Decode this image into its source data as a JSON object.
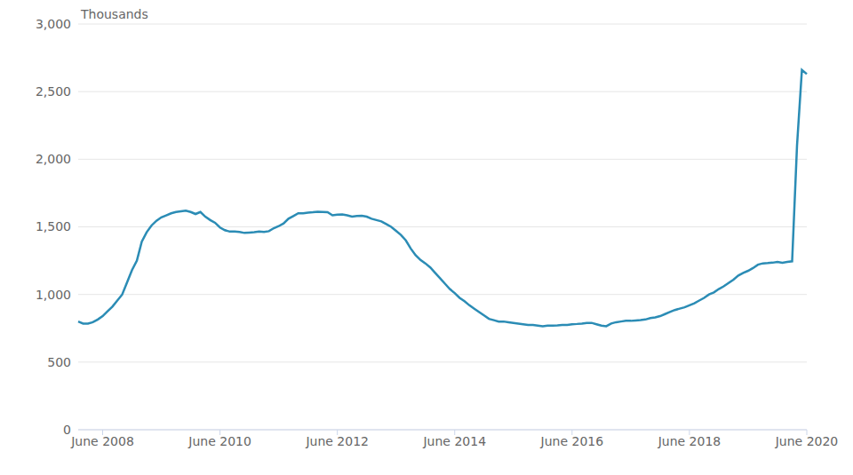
{
  "chart_data": {
    "type": "line",
    "y_label": "Thousands",
    "color": "#2b8cb5",
    "grid": true,
    "categories": [
      null,
      null,
      null,
      null,
      null,
      "June 2008",
      null,
      null,
      null,
      null,
      null,
      null,
      null,
      null,
      null,
      null,
      null,
      null,
      null,
      null,
      null,
      null,
      null,
      null,
      null,
      null,
      null,
      null,
      null,
      "June 2010",
      null,
      null,
      null,
      null,
      null,
      null,
      null,
      null,
      null,
      null,
      null,
      null,
      null,
      null,
      null,
      null,
      null,
      null,
      null,
      null,
      null,
      null,
      null,
      "June 2012",
      null,
      null,
      null,
      null,
      null,
      null,
      null,
      null,
      null,
      null,
      null,
      null,
      null,
      null,
      null,
      null,
      null,
      null,
      null,
      null,
      null,
      null,
      null,
      "June 2014",
      null,
      null,
      null,
      null,
      null,
      null,
      null,
      null,
      null,
      null,
      null,
      null,
      null,
      null,
      null,
      null,
      null,
      null,
      null,
      null,
      null,
      null,
      null,
      "June 2016",
      null,
      null,
      null,
      null,
      null,
      null,
      null,
      null,
      null,
      null,
      null,
      null,
      null,
      null,
      null,
      null,
      null,
      null,
      null,
      null,
      null,
      null,
      null,
      "June 2018",
      null,
      null,
      null,
      null,
      null,
      null,
      null,
      null,
      null,
      null,
      null,
      null,
      null,
      null,
      null,
      null,
      null,
      null,
      null,
      null,
      null,
      null,
      null,
      "June 2020"
    ],
    "values": [
      800,
      785,
      785,
      795,
      815,
      840,
      875,
      910,
      955,
      1000,
      1090,
      1180,
      1250,
      1390,
      1460,
      1510,
      1545,
      1570,
      1585,
      1600,
      1610,
      1615,
      1620,
      1610,
      1595,
      1610,
      1575,
      1550,
      1530,
      1495,
      1475,
      1465,
      1465,
      1462,
      1455,
      1458,
      1460,
      1465,
      1462,
      1468,
      1490,
      1505,
      1525,
      1560,
      1580,
      1600,
      1600,
      1605,
      1608,
      1612,
      1610,
      1608,
      1585,
      1590,
      1592,
      1585,
      1575,
      1580,
      1582,
      1575,
      1560,
      1550,
      1540,
      1520,
      1500,
      1470,
      1440,
      1400,
      1340,
      1290,
      1255,
      1230,
      1200,
      1160,
      1120,
      1080,
      1040,
      1010,
      975,
      950,
      920,
      895,
      870,
      845,
      820,
      810,
      800,
      800,
      795,
      790,
      785,
      780,
      775,
      775,
      770,
      765,
      770,
      770,
      772,
      775,
      775,
      780,
      782,
      785,
      790,
      790,
      780,
      770,
      765,
      785,
      795,
      800,
      805,
      805,
      808,
      810,
      815,
      825,
      830,
      840,
      855,
      870,
      885,
      895,
      905,
      920,
      935,
      955,
      975,
      1000,
      1015,
      1040,
      1060,
      1085,
      1110,
      1140,
      1160,
      1175,
      1195,
      1220,
      1230,
      1232,
      1235,
      1240,
      1235,
      1240,
      1245,
      2100,
      2660,
      2630
    ],
    "ylim": [
      0,
      3000
    ],
    "yticks": [
      0,
      500,
      {
        "value": 1000,
        "label": "1,000"
      },
      {
        "value": 1500,
        "label": "1,500"
      },
      {
        "value": 2000,
        "label": "2,000"
      },
      {
        "value": 2500,
        "label": "2,500"
      },
      {
        "value": 3000,
        "label": "3,000"
      }
    ]
  }
}
